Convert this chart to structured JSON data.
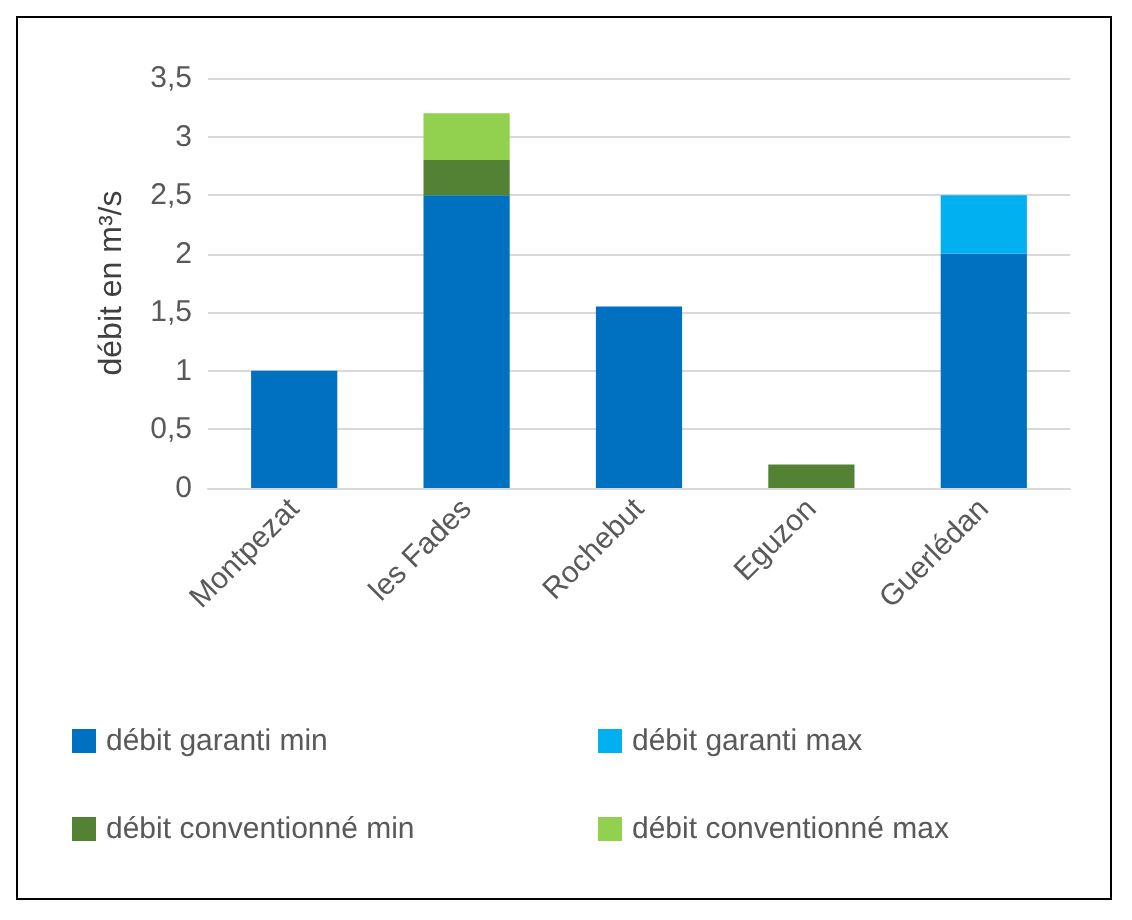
{
  "chart_data": {
    "type": "bar",
    "stacked": true,
    "ylabel": "débit en m³/s",
    "categories": [
      "Montpezat",
      "les Fades",
      "Rochebut",
      "Eguzon",
      "Guerlédan"
    ],
    "series": [
      {
        "name": "débit garanti min",
        "color": "#0070c0",
        "values": [
          1.0,
          2.5,
          1.55,
          null,
          2.0
        ]
      },
      {
        "name": "débit garanti max",
        "color": "#00b0f0",
        "values": [
          null,
          null,
          null,
          null,
          0.5
        ]
      },
      {
        "name": "débit conventionné min",
        "color": "#548235",
        "values": [
          null,
          0.3,
          null,
          0.2,
          null
        ]
      },
      {
        "name": "débit conventionné max",
        "color": "#92d050",
        "values": [
          null,
          0.4,
          null,
          null,
          null
        ]
      }
    ],
    "ylim": [
      0,
      3.5
    ],
    "yticks": [
      0,
      {
        "value": 0.5,
        "label": "0,5"
      },
      1,
      {
        "value": 1.5,
        "label": "1,5"
      },
      2,
      {
        "value": 2.5,
        "label": "2,5"
      },
      3,
      {
        "value": 3.5,
        "label": "3,5"
      }
    ],
    "grid": true,
    "legend": "bottom"
  }
}
